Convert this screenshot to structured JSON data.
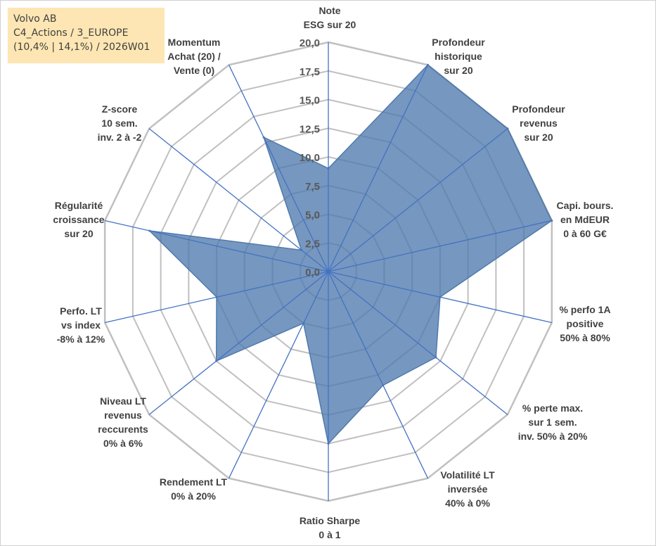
{
  "header": {
    "line1": "Volvo AB",
    "line2": "C4_Actions / 3_EUROPE",
    "line3": "(10,4% | 14,1%) / 2026W01"
  },
  "colors": {
    "fill": "#4f7aad",
    "axis": "#4472c4",
    "grid": "#c0c0c0",
    "box": "#fde6b3"
  },
  "chart_data": {
    "type": "radar",
    "title": "",
    "rmin": 0,
    "rmax": 20,
    "ticks": [
      "0,0",
      "2,5",
      "5,0",
      "7,5",
      "10,0",
      "12,5",
      "15,0",
      "17,5",
      "20,0"
    ],
    "axes": [
      {
        "label": [
          "Note",
          "ESG sur 20"
        ],
        "value": 9.0
      },
      {
        "label": [
          "Profondeur",
          "historique",
          "sur 20"
        ],
        "value": 20.0
      },
      {
        "label": [
          "Profondeur",
          "revenus",
          "sur 20"
        ],
        "value": 20.0
      },
      {
        "label": [
          "Capi. bours.",
          "en MdEUR",
          "0 à 60 G€"
        ],
        "value": 20.0
      },
      {
        "label": [
          "% perfo 1A",
          "positive",
          "50% à 80%"
        ],
        "value": 10.0
      },
      {
        "label": [
          "% perte max.",
          "sur 1 sem.",
          "inv. 50% à 20%"
        ],
        "value": 12.0
      },
      {
        "label": [
          "Volatilité LT",
          "inversée",
          "40% à 0%"
        ],
        "value": 11.0
      },
      {
        "label": [
          "Ratio Sharpe",
          "0 à 1"
        ],
        "value": 15.0
      },
      {
        "label": [
          "Rendement LT",
          "0% à 20%"
        ],
        "value": 5.0
      },
      {
        "label": [
          "Niveau LT",
          "revenus",
          "reccurents",
          "0% à 6%"
        ],
        "value": 12.5
      },
      {
        "label": [
          "Perfo. LT",
          "vs index",
          "-8% à 12%"
        ],
        "value": 10.0
      },
      {
        "label": [
          "Régularité",
          "croissance",
          "sur 20"
        ],
        "value": 16.0
      },
      {
        "label": [
          "Z-score",
          "10 sem.",
          "inv. 2 à -2"
        ],
        "value": 3.0
      },
      {
        "label": [
          "Momentum",
          "Achat (20) /",
          "Vente (0)"
        ],
        "value": 13.0
      }
    ]
  }
}
